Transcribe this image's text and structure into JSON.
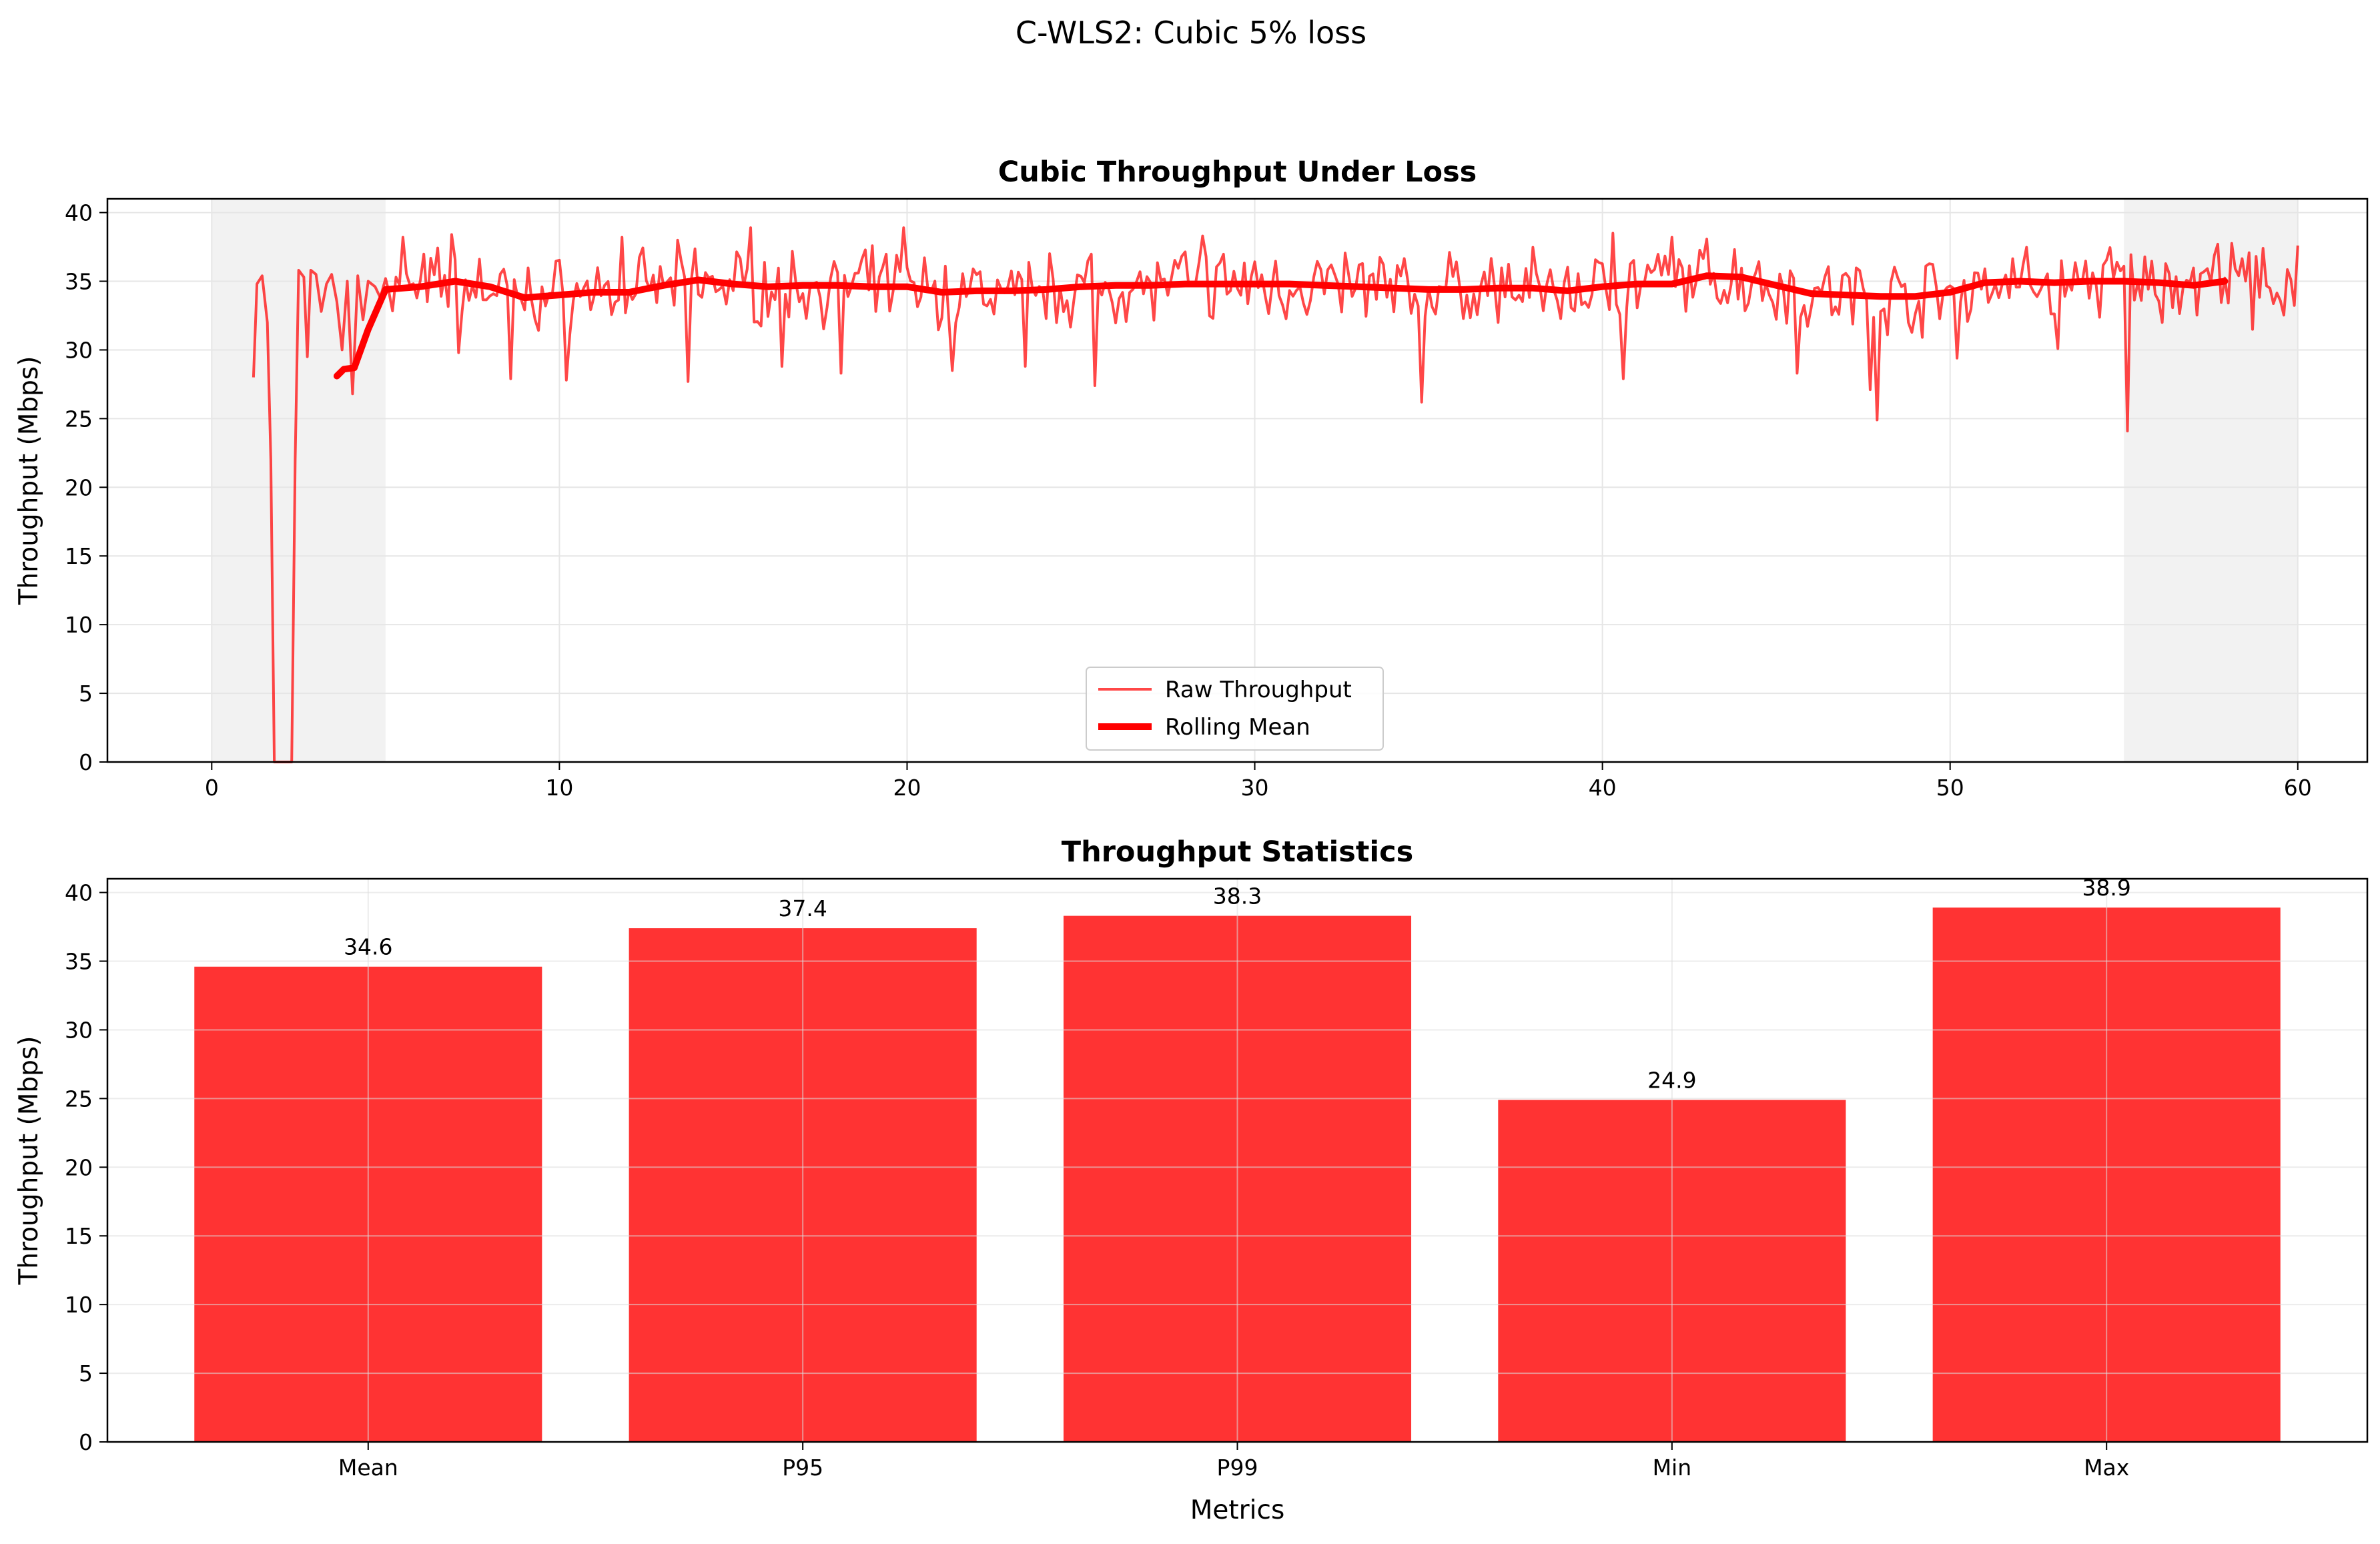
{
  "figure": {
    "suptitle": "C-WLS2: Cubic 5% loss"
  },
  "colors": {
    "raw": "#ff0000",
    "rolling": "#ff0000",
    "bar": "#ff3333",
    "shade": "#f2f2f2",
    "grid": "#e6e6e6"
  },
  "chart_data": [
    {
      "type": "line",
      "title": "Cubic Throughput Under Loss",
      "xlabel": "",
      "ylabel": "Throughput (Mbps)",
      "xlim": [
        -3,
        62
      ],
      "ylim": [
        0,
        41
      ],
      "xticks": [
        0,
        10,
        20,
        30,
        40,
        50,
        60
      ],
      "yticks": [
        0,
        5,
        10,
        15,
        20,
        25,
        30,
        35,
        40
      ],
      "grid": true,
      "legend": {
        "placement": "lower-center",
        "entries": [
          "Raw Throughput",
          "Rolling Mean"
        ]
      },
      "shaded_regions": [
        [
          0,
          5
        ],
        [
          55,
          60
        ]
      ],
      "series": [
        {
          "name": "Raw Throughput",
          "style": "thin",
          "points": [
            [
              1.2,
              28
            ],
            [
              1.3,
              34.8
            ],
            [
              1.45,
              35.4
            ],
            [
              1.6,
              32
            ],
            [
              1.7,
              22
            ],
            [
              1.8,
              0
            ],
            [
              2.3,
              0
            ],
            [
              2.4,
              22
            ],
            [
              2.5,
              35.8
            ],
            [
              2.65,
              35.3
            ],
            [
              2.75,
              29.5
            ],
            [
              2.85,
              35.8
            ],
            [
              3.0,
              35.5
            ],
            [
              3.15,
              32.8
            ],
            [
              3.3,
              34.8
            ],
            [
              3.45,
              35.5
            ],
            [
              3.6,
              33.5
            ],
            [
              3.75,
              30
            ],
            [
              3.9,
              35
            ],
            [
              4.05,
              26.8
            ],
            [
              4.2,
              35.4
            ],
            [
              4.35,
              32.2
            ],
            [
              4.5,
              35
            ],
            [
              4.7,
              34.6
            ],
            [
              4.85,
              33.8
            ],
            [
              5.0,
              35.2
            ]
          ],
          "generated": {
            "x_start": 5.0,
            "x_end": 60.0,
            "step": 0.1,
            "base_from_series": "Rolling Mean",
            "noise_amplitude": 3.2,
            "seed": 7
          },
          "dips": [
            [
              3.7,
              29.7
            ],
            [
              7.1,
              29.8
            ],
            [
              8.6,
              27.9
            ],
            [
              10.2,
              27.8
            ],
            [
              13.7,
              27.7
            ],
            [
              16.4,
              28.8
            ],
            [
              18.1,
              28.3
            ],
            [
              21.3,
              28.5
            ],
            [
              23.4,
              28.8
            ],
            [
              25.4,
              27.4
            ],
            [
              34.8,
              26.2
            ],
            [
              40.6,
              27.9
            ],
            [
              45.6,
              28.3
            ],
            [
              47.7,
              27.1
            ],
            [
              47.9,
              24.9
            ],
            [
              50.2,
              29.4
            ],
            [
              53.1,
              30.1
            ],
            [
              55.1,
              24.1
            ],
            [
              56.1,
              32
            ],
            [
              58.7,
              31.5
            ]
          ],
          "peaks": [
            [
              5.5,
              38.2
            ],
            [
              6.9,
              38.4
            ],
            [
              11.8,
              38.2
            ],
            [
              15.5,
              38.9
            ],
            [
              19.9,
              38.9
            ],
            [
              28.5,
              38.3
            ],
            [
              40.3,
              38.5
            ],
            [
              42.0,
              38.2
            ],
            [
              57.7,
              37.7
            ],
            [
              59.0,
              37.4
            ],
            [
              60.0,
              37.6
            ]
          ]
        },
        {
          "name": "Rolling Mean",
          "style": "thick",
          "points": [
            [
              3.6,
              28.1
            ],
            [
              3.8,
              28.6
            ],
            [
              4.1,
              28.7
            ],
            [
              4.5,
              31.5
            ],
            [
              5.0,
              34.4
            ],
            [
              6,
              34.6
            ],
            [
              7,
              35
            ],
            [
              8,
              34.6
            ],
            [
              9,
              33.8
            ],
            [
              10,
              34
            ],
            [
              11,
              34.2
            ],
            [
              12,
              34.2
            ],
            [
              13,
              34.7
            ],
            [
              14,
              35.1
            ],
            [
              15,
              34.8
            ],
            [
              16,
              34.6
            ],
            [
              17,
              34.7
            ],
            [
              18,
              34.7
            ],
            [
              19,
              34.6
            ],
            [
              20,
              34.6
            ],
            [
              21,
              34.2
            ],
            [
              22,
              34.3
            ],
            [
              23,
              34.3
            ],
            [
              24,
              34.4
            ],
            [
              25,
              34.6
            ],
            [
              26,
              34.7
            ],
            [
              27,
              34.7
            ],
            [
              28,
              34.8
            ],
            [
              29,
              34.8
            ],
            [
              30,
              34.8
            ],
            [
              31,
              34.8
            ],
            [
              32,
              34.7
            ],
            [
              33,
              34.6
            ],
            [
              34,
              34.5
            ],
            [
              35,
              34.4
            ],
            [
              36,
              34.4
            ],
            [
              37,
              34.5
            ],
            [
              38,
              34.5
            ],
            [
              39,
              34.3
            ],
            [
              40,
              34.6
            ],
            [
              41,
              34.8
            ],
            [
              42,
              34.8
            ],
            [
              43,
              35.4
            ],
            [
              44,
              35.3
            ],
            [
              45,
              34.7
            ],
            [
              46,
              34.1
            ],
            [
              47,
              34.0
            ],
            [
              48,
              33.9
            ],
            [
              49,
              33.9
            ],
            [
              50,
              34.2
            ],
            [
              51,
              34.9
            ],
            [
              52,
              35.0
            ],
            [
              53,
              34.9
            ],
            [
              54,
              35.0
            ],
            [
              55,
              35.0
            ],
            [
              56,
              34.9
            ],
            [
              57,
              34.7
            ],
            [
              57.9,
              35.0
            ]
          ]
        }
      ]
    },
    {
      "type": "bar",
      "title": "Throughput Statistics",
      "xlabel": "Metrics",
      "ylabel": "Throughput (Mbps)",
      "ylim": [
        0,
        41
      ],
      "yticks": [
        0,
        5,
        10,
        15,
        20,
        25,
        30,
        35,
        40
      ],
      "grid": true,
      "categories": [
        "Mean",
        "P95",
        "P99",
        "Min",
        "Max"
      ],
      "values": [
        34.6,
        37.4,
        38.3,
        24.9,
        38.9
      ],
      "value_labels": [
        "34.6",
        "37.4",
        "38.3",
        "24.9",
        "38.9"
      ]
    }
  ]
}
